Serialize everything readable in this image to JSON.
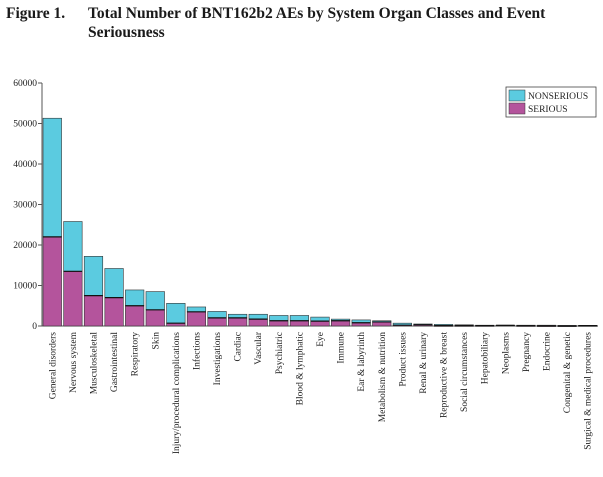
{
  "figure": {
    "label": "Figure 1.",
    "title": "Total Number of BNT162b2 AEs by System Organ Classes and Event Seriousness"
  },
  "colors": {
    "nonserious": "#5bcbe0",
    "serious": "#b4549c",
    "axis": "#555555",
    "bar_edge": "#333333"
  },
  "chart_data": {
    "type": "bar",
    "stacked": true,
    "title": "Total Number of BNT162b2 AEs by System Organ Classes and Event Seriousness",
    "xlabel": "",
    "ylabel": "",
    "ylim": [
      0,
      60000
    ],
    "yticks": [
      "0",
      "10000",
      "20000",
      "30000",
      "40000",
      "50000",
      "60000"
    ],
    "legend_position": "top-right",
    "categories": [
      "General disorders",
      "Nervous system",
      "Musculoskeletal",
      "Gastrointestinal",
      "Respiratory",
      "Skin",
      "Injury/procedural complications",
      "Infections",
      "Investigations",
      "Cardiac",
      "Vascular",
      "Psychiatric",
      "Blood & lymphatic",
      "Eye",
      "Immune",
      "Ear & labyrinth",
      "Metabolism & nutrition",
      "Product issues",
      "Renal & urinary",
      "Reproductive & breast",
      "Social circumstances",
      "Hepatobiliary",
      "Neoplasms",
      "Pregnancy",
      "Endocrine",
      "Congenital & genetic",
      "Surgical & medical procedures"
    ],
    "series": [
      {
        "name": "SERIOUS",
        "values": [
          22000,
          13500,
          7500,
          7000,
          5000,
          4000,
          700,
          3500,
          2000,
          2000,
          1700,
          1300,
          1300,
          1200,
          1300,
          800,
          1000,
          200,
          300,
          100,
          100,
          100,
          150,
          80,
          50,
          40,
          100
        ]
      },
      {
        "name": "NONSERIOUS",
        "values": [
          29300,
          12300,
          9700,
          7200,
          3900,
          4500,
          4900,
          1200,
          1600,
          900,
          1200,
          1300,
          1300,
          1000,
          400,
          700,
          300,
          500,
          200,
          300,
          200,
          100,
          50,
          120,
          150,
          100,
          50
        ]
      }
    ]
  }
}
